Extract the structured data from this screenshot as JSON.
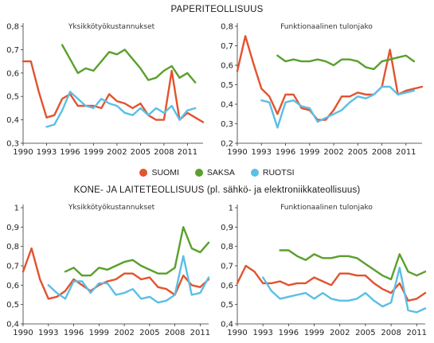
{
  "titles": {
    "top": "PAPERITEOLLISUUS",
    "bottom": "KONE- JA LAITETEOLLISUUS (pl. sähkö- ja elektroniikkateollisuus)"
  },
  "legend": [
    {
      "label": "SUOMI",
      "color": "#e2532f"
    },
    {
      "label": "SAKSA",
      "color": "#5aa02c"
    },
    {
      "label": "RUOTSI",
      "color": "#5bbfe5"
    }
  ],
  "chart_data": [
    {
      "type": "line",
      "section": "PAPERITEOLLISUUS",
      "title": "Yksikkötyökustannukset",
      "ylim": [
        0.3,
        0.8
      ],
      "yticks": [
        "0,3",
        "0,4",
        "0,5",
        "0,6",
        "0,7",
        "0,8"
      ],
      "xticks": [
        "1990",
        "1993",
        "1996",
        "1999",
        "2002",
        "2005",
        "2008",
        "2011"
      ],
      "xlim": [
        1990,
        2013
      ],
      "grid": false,
      "series": [
        {
          "name": "SUOMI",
          "color": "#e2532f",
          "x": [
            1990,
            1991,
            1992,
            1993,
            1994,
            1995,
            1996,
            1997,
            1998,
            1999,
            2000,
            2001,
            2002,
            2003,
            2004,
            2005,
            2006,
            2007,
            2008,
            2009,
            2010,
            2011,
            2012,
            2013
          ],
          "y": [
            0.65,
            0.65,
            0.52,
            0.41,
            0.42,
            0.49,
            0.51,
            0.46,
            0.46,
            0.46,
            0.45,
            0.51,
            0.48,
            0.47,
            0.45,
            0.47,
            0.42,
            0.4,
            0.4,
            0.61,
            0.4,
            0.43,
            0.41,
            0.39
          ]
        },
        {
          "name": "SAKSA",
          "color": "#5aa02c",
          "x": [
            1995,
            1996,
            1997,
            1998,
            1999,
            2000,
            2001,
            2002,
            2003,
            2004,
            2005,
            2006,
            2007,
            2008,
            2009,
            2010,
            2011,
            2012
          ],
          "y": [
            0.72,
            0.66,
            0.6,
            0.62,
            0.61,
            0.65,
            0.69,
            0.68,
            0.7,
            0.66,
            0.62,
            0.57,
            0.58,
            0.61,
            0.63,
            0.58,
            0.6,
            0.56
          ]
        },
        {
          "name": "RUOTSI",
          "color": "#5bbfe5",
          "x": [
            1993,
            1994,
            1995,
            1996,
            1997,
            1998,
            1999,
            2000,
            2001,
            2002,
            2003,
            2004,
            2005,
            2006,
            2007,
            2008,
            2009,
            2010,
            2011,
            2012
          ],
          "y": [
            0.37,
            0.38,
            0.44,
            0.52,
            0.49,
            0.46,
            0.45,
            0.49,
            0.47,
            0.46,
            0.43,
            0.42,
            0.45,
            0.42,
            0.45,
            0.43,
            0.46,
            0.4,
            0.44,
            0.45
          ]
        }
      ]
    },
    {
      "type": "line",
      "section": "PAPERITEOLLISUUS",
      "title": "Funktionaalinen tulonjako",
      "ylim": [
        0.2,
        0.8
      ],
      "yticks": [
        "0,2",
        "0,3",
        "0,4",
        "0,5",
        "0,6",
        "0,7",
        "0,8"
      ],
      "xticks": [
        "1990",
        "1993",
        "1996",
        "1999",
        "2002",
        "2005",
        "2008",
        "2011"
      ],
      "xlim": [
        1990,
        2013
      ],
      "grid": false,
      "series": [
        {
          "name": "SUOMI",
          "color": "#e2532f",
          "x": [
            1990,
            1991,
            1992,
            1993,
            1994,
            1995,
            1996,
            1997,
            1998,
            1999,
            2000,
            2001,
            2002,
            2003,
            2004,
            2005,
            2006,
            2007,
            2008,
            2009,
            2010,
            2011,
            2012,
            2013
          ],
          "y": [
            0.57,
            0.75,
            0.61,
            0.48,
            0.44,
            0.35,
            0.45,
            0.45,
            0.38,
            0.37,
            0.32,
            0.32,
            0.37,
            0.44,
            0.44,
            0.46,
            0.45,
            0.45,
            0.49,
            0.68,
            0.45,
            0.47,
            0.48,
            0.49
          ]
        },
        {
          "name": "SAKSA",
          "color": "#5aa02c",
          "x": [
            1995,
            1996,
            1997,
            1998,
            1999,
            2000,
            2001,
            2002,
            2003,
            2004,
            2005,
            2006,
            2007,
            2008,
            2009,
            2010,
            2011,
            2012
          ],
          "y": [
            0.65,
            0.62,
            0.63,
            0.62,
            0.62,
            0.63,
            0.62,
            0.6,
            0.63,
            0.63,
            0.62,
            0.59,
            0.58,
            0.62,
            0.63,
            0.64,
            0.65,
            0.62
          ]
        },
        {
          "name": "RUOTSI",
          "color": "#5bbfe5",
          "x": [
            1993,
            1994,
            1995,
            1996,
            1997,
            1998,
            1999,
            2000,
            2001,
            2002,
            2003,
            2004,
            2005,
            2006,
            2007,
            2008,
            2009,
            2010,
            2011,
            2012
          ],
          "y": [
            0.42,
            0.41,
            0.28,
            0.41,
            0.42,
            0.39,
            0.38,
            0.31,
            0.33,
            0.35,
            0.37,
            0.41,
            0.44,
            0.43,
            0.45,
            0.49,
            0.49,
            0.45,
            0.46,
            0.47
          ]
        }
      ]
    },
    {
      "type": "line",
      "section": "KONE- JA LAITETEOLLISUUS (pl. sähkö- ja elektroniikkateollisuus)",
      "title": "Yksikkötyökustannukset",
      "ylim": [
        0.4,
        1.0
      ],
      "yticks": [
        "0,4",
        "0,5",
        "0,6",
        "0,7",
        "0,8",
        "0,9",
        "1"
      ],
      "xticks": [
        "1990",
        "1993",
        "1996",
        "1999",
        "2002",
        "2005",
        "2008",
        "2011"
      ],
      "xlim": [
        1990,
        2012
      ],
      "grid": false,
      "series": [
        {
          "name": "SUOMI",
          "color": "#e2532f",
          "x": [
            1990,
            1991,
            1992,
            1993,
            1994,
            1995,
            1996,
            1997,
            1998,
            1999,
            2000,
            2001,
            2002,
            2003,
            2004,
            2005,
            2006,
            2007,
            2008,
            2009,
            2010,
            2011,
            2012
          ],
          "y": [
            0.67,
            0.79,
            0.63,
            0.53,
            0.54,
            0.57,
            0.63,
            0.6,
            0.57,
            0.6,
            0.62,
            0.63,
            0.66,
            0.66,
            0.63,
            0.64,
            0.59,
            0.58,
            0.55,
            0.65,
            0.6,
            0.59,
            0.63
          ]
        },
        {
          "name": "SAKSA",
          "color": "#5aa02c",
          "x": [
            1995,
            1996,
            1997,
            1998,
            1999,
            2000,
            2001,
            2002,
            2003,
            2004,
            2005,
            2006,
            2007,
            2008,
            2009,
            2010,
            2011,
            2012
          ],
          "y": [
            0.67,
            0.69,
            0.65,
            0.65,
            0.69,
            0.68,
            0.7,
            0.72,
            0.73,
            0.7,
            0.68,
            0.66,
            0.66,
            0.69,
            0.9,
            0.79,
            0.77,
            0.82
          ]
        },
        {
          "name": "RUOTSI",
          "color": "#5bbfe5",
          "x": [
            1993,
            1994,
            1995,
            1996,
            1997,
            1998,
            1999,
            2000,
            2001,
            2002,
            2003,
            2004,
            2005,
            2006,
            2007,
            2008,
            2009,
            2010,
            2011,
            2012
          ],
          "y": [
            0.6,
            0.56,
            0.53,
            0.62,
            0.62,
            0.56,
            0.61,
            0.61,
            0.55,
            0.56,
            0.58,
            0.53,
            0.54,
            0.51,
            0.52,
            0.55,
            0.75,
            0.55,
            0.56,
            0.64
          ]
        }
      ]
    },
    {
      "type": "line",
      "section": "KONE- JA LAITETEOLLISUUS (pl. sähkö- ja elektroniikkateollisuus)",
      "title": "Funktionaalinen tulonjako",
      "ylim": [
        0.4,
        1.0
      ],
      "yticks": [
        "0,4",
        "0,5",
        "0,6",
        "0,7",
        "0,8",
        "0,9",
        "1"
      ],
      "xticks": [
        "1990",
        "1993",
        "1996",
        "1999",
        "2002",
        "2005",
        "2008",
        "2011"
      ],
      "xlim": [
        1990,
        2012
      ],
      "grid": false,
      "series": [
        {
          "name": "SUOMI",
          "color": "#e2532f",
          "x": [
            1990,
            1991,
            1992,
            1993,
            1994,
            1995,
            1996,
            1997,
            1998,
            1999,
            2000,
            2001,
            2002,
            2003,
            2004,
            2005,
            2006,
            2007,
            2008,
            2009,
            2010,
            2011,
            2012
          ],
          "y": [
            0.61,
            0.7,
            0.67,
            0.61,
            0.61,
            0.62,
            0.6,
            0.61,
            0.61,
            0.64,
            0.62,
            0.6,
            0.66,
            0.66,
            0.65,
            0.65,
            0.61,
            0.58,
            0.56,
            0.61,
            0.52,
            0.53,
            0.56
          ]
        },
        {
          "name": "SAKSA",
          "color": "#5aa02c",
          "x": [
            1995,
            1996,
            1997,
            1998,
            1999,
            2000,
            2001,
            2002,
            2003,
            2004,
            2005,
            2006,
            2007,
            2008,
            2009,
            2010,
            2011,
            2012
          ],
          "y": [
            0.78,
            0.78,
            0.75,
            0.73,
            0.76,
            0.74,
            0.74,
            0.75,
            0.75,
            0.74,
            0.71,
            0.68,
            0.65,
            0.63,
            0.76,
            0.67,
            0.65,
            0.67
          ]
        },
        {
          "name": "RUOTSI",
          "color": "#5bbfe5",
          "x": [
            1993,
            1994,
            1995,
            1996,
            1997,
            1998,
            1999,
            2000,
            2001,
            2002,
            2003,
            2004,
            2005,
            2006,
            2007,
            2008,
            2009,
            2010,
            2011,
            2012
          ],
          "y": [
            0.64,
            0.57,
            0.53,
            0.54,
            0.55,
            0.56,
            0.53,
            0.56,
            0.53,
            0.52,
            0.52,
            0.53,
            0.56,
            0.52,
            0.49,
            0.51,
            0.69,
            0.47,
            0.46,
            0.48
          ]
        }
      ]
    }
  ]
}
